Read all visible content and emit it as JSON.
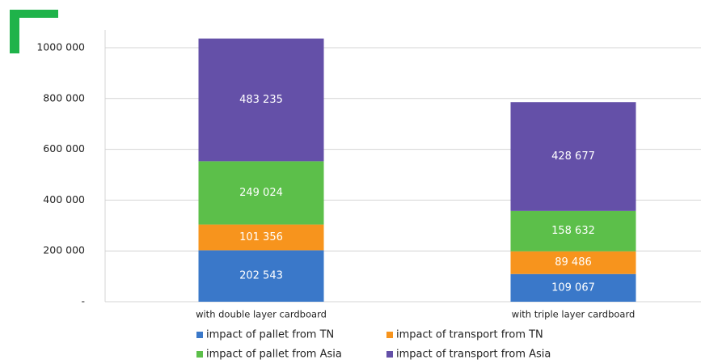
{
  "chart_data": {
    "type": "stacked_bar",
    "categories": [
      "with double layer cardboard",
      "with triple layer cardboard"
    ],
    "series": [
      {
        "name": "impact of pallet from TN",
        "color": "#3a78c9",
        "values": [
          202543,
          109067
        ],
        "value_labels": [
          "202 543",
          "109 067"
        ]
      },
      {
        "name": "impact of transport from TN",
        "color": "#f7941d",
        "values": [
          101356,
          89486
        ],
        "value_labels": [
          "101 356",
          "89 486"
        ]
      },
      {
        "name": "impact of pallet from Asia",
        "color": "#5cbf4a",
        "values": [
          249024,
          158632
        ],
        "value_labels": [
          "249 024",
          "158 632"
        ]
      },
      {
        "name": "impact of transport from Asia",
        "color": "#6450a8",
        "values": [
          483235,
          428677
        ],
        "value_labels": [
          "483 235",
          "428 677"
        ]
      }
    ],
    "ylim": [
      0,
      1070000
    ],
    "yticks": [
      {
        "value": 0,
        "label": "-"
      },
      {
        "value": 200000,
        "label": "200 000"
      },
      {
        "value": 400000,
        "label": "400 000"
      },
      {
        "value": 600000,
        "label": "600 000"
      },
      {
        "value": 800000,
        "label": "800 000"
      },
      {
        "value": 1000000,
        "label": "1000 000"
      }
    ],
    "grid": true
  }
}
